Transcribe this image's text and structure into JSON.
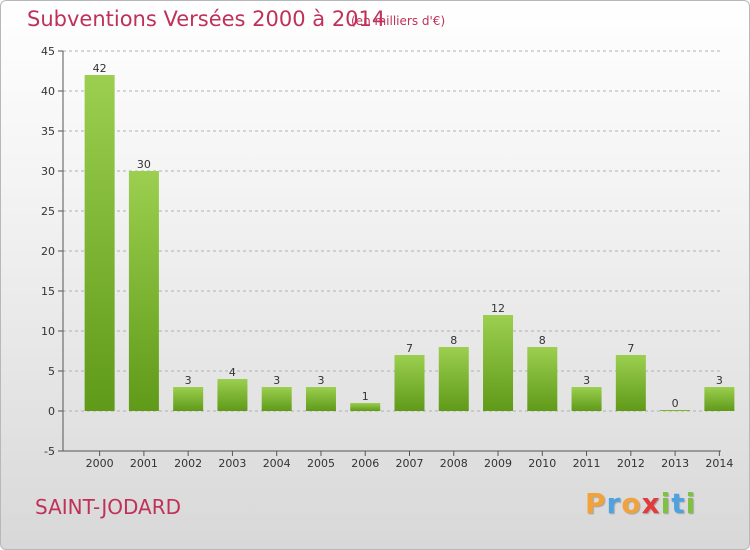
{
  "header": {
    "title": "Subventions Versées 2000 à 2014",
    "unit": "(en milliers d'€)"
  },
  "footer": {
    "place": "SAINT-JODARD",
    "brand_letters": [
      "P",
      "r",
      "o",
      "x",
      "i",
      "t",
      "i"
    ],
    "brand_colors": [
      "#f2a23a",
      "#4da3e0",
      "#f2a23a",
      "#e23b3b",
      "#7fc242",
      "#4da3e0",
      "#7fc242"
    ]
  },
  "colors": {
    "title": "#c0315a",
    "bar_top": "#9ccf4f",
    "bar_bottom": "#5f9a18",
    "grid": "#b0b0b0"
  },
  "chart_data": {
    "type": "bar",
    "title": "Subventions Versées 2000 à 2014",
    "xlabel": "",
    "ylabel": "",
    "categories": [
      "2000",
      "2001",
      "2002",
      "2003",
      "2004",
      "2005",
      "2006",
      "2007",
      "2008",
      "2009",
      "2010",
      "2011",
      "2012",
      "2013",
      "2014"
    ],
    "values": [
      42,
      30,
      3,
      4,
      3,
      3,
      1,
      7,
      8,
      12,
      8,
      3,
      7,
      0,
      3
    ],
    "ylim": [
      -5,
      45
    ],
    "yticks": [
      -5,
      0,
      5,
      10,
      15,
      20,
      25,
      30,
      35,
      40,
      45
    ],
    "grid": "horizontal dashed",
    "data_labels": true
  }
}
